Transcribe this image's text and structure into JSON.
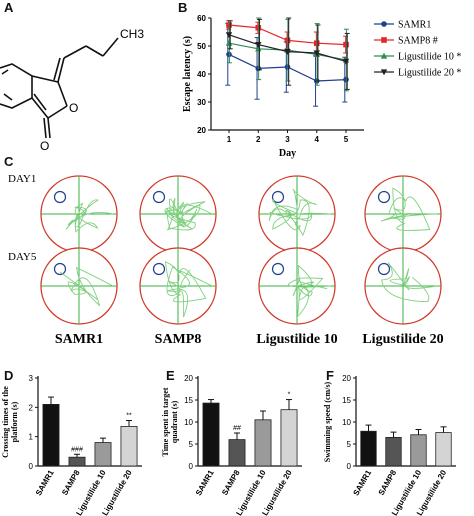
{
  "panels": {
    "a": "A",
    "b": "B",
    "c": "C",
    "d": "D",
    "e": "E",
    "f": "F"
  },
  "molecule": {
    "ch3_label": "CH3"
  },
  "colors": {
    "samr1": "#1f3f8f",
    "samp8": "#e8242b",
    "lig10": "#2e8b57",
    "lig20": "#222222",
    "bar_samr1": "#111111",
    "bar_samp8": "#555555",
    "bar_lig10": "#9a9a9a",
    "bar_lig20": "#d4d4d4",
    "pool_border": "#d23a2a",
    "quadrant_line": "#3cb043",
    "path": "#7fd07f",
    "platform": "#1f3f8f"
  },
  "panel_c": {
    "row_labels": [
      "DAY1",
      "DAY5"
    ],
    "group_labels": [
      "SAMR1",
      "SAMP8",
      "Ligustilide 10",
      "Ligustilide 20"
    ]
  },
  "chart_data": [
    {
      "type": "line",
      "id": "B",
      "x": [
        1,
        2,
        3,
        4,
        5
      ],
      "xlabel": "Day",
      "ylabel": "Escape latency (s)",
      "ylim": [
        20,
        60
      ],
      "yticks": [
        20,
        30,
        40,
        50,
        60
      ],
      "legend_position": "right",
      "series": [
        {
          "name": "SAMR1",
          "marker": "circle",
          "values": [
            47,
            42,
            42.5,
            37.5,
            38
          ],
          "err": [
            11,
            11,
            9,
            9,
            8
          ]
        },
        {
          "name": "SAMP8 #",
          "marker": "square",
          "values": [
            57.5,
            56.5,
            52,
            51,
            50.5
          ],
          "err": [
            1.5,
            2,
            3,
            4,
            3
          ]
        },
        {
          "name": "Ligustilide 10 *",
          "marker": "triangle",
          "values": [
            51,
            49,
            48.5,
            47,
            45
          ],
          "err": [
            7,
            11,
            11,
            11,
            11
          ]
        },
        {
          "name": "Ligustilide 20 *",
          "marker": "triangle-down",
          "values": [
            54,
            50.5,
            48,
            47.5,
            44.5
          ],
          "err": [
            5,
            9,
            12,
            10,
            10
          ]
        }
      ]
    },
    {
      "type": "bar",
      "id": "D",
      "categories": [
        "SAMR1",
        "SAMP8",
        "Ligustilide 10",
        "Ligustilide 20"
      ],
      "values": [
        2.1,
        0.3,
        0.8,
        1.35
      ],
      "err": [
        0.25,
        0.1,
        0.15,
        0.2
      ],
      "annotations": [
        "",
        "###",
        "",
        "**"
      ],
      "ylabel": "Crossing times of the platform (s)",
      "ylim": [
        0,
        3
      ],
      "yticks": [
        0,
        1,
        2,
        3
      ]
    },
    {
      "type": "bar",
      "id": "E",
      "categories": [
        "SAMR1",
        "SAMP8",
        "Ligustilide 10",
        "Ligustilide 20"
      ],
      "values": [
        14.3,
        6,
        10.5,
        12.8
      ],
      "err": [
        0.8,
        1.5,
        2,
        2.3
      ],
      "annotations": [
        "",
        "##",
        "",
        "*"
      ],
      "ylabel": "Time spent in target quadrant (s)",
      "ylim": [
        0,
        20
      ],
      "yticks": [
        0,
        5,
        10,
        15,
        20
      ]
    },
    {
      "type": "bar",
      "id": "F",
      "categories": [
        "SAMR1",
        "SAMP8",
        "Ligustilide 10",
        "Ligustilide 20"
      ],
      "values": [
        7.9,
        6.5,
        7.1,
        7.6
      ],
      "err": [
        1.4,
        1.2,
        1.2,
        1.3
      ],
      "annotations": [
        "",
        "",
        "",
        ""
      ],
      "ylabel": "Swimming speed (cm/s)",
      "ylim": [
        0,
        20
      ],
      "yticks": [
        0,
        5,
        10,
        15,
        20
      ]
    }
  ]
}
